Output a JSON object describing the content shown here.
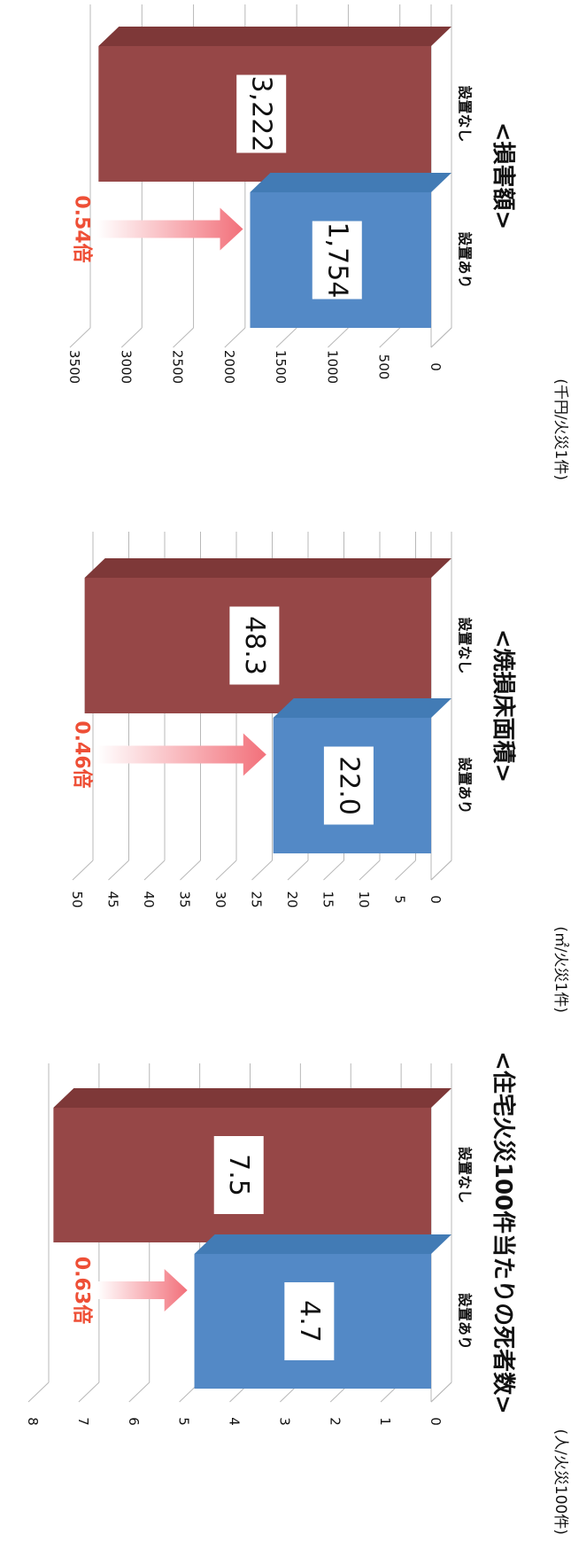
{
  "colors": {
    "without": "#964747",
    "without_side": "#6e2f2f",
    "without_top": "#7e3838",
    "with": "#5389c6",
    "with_side": "#3b6a9c",
    "with_top": "#427bb5",
    "ratio": "#ee4f36",
    "grid": "#b8b8b8"
  },
  "chart_data": [
    {
      "type": "bar",
      "title": "<住宅火災100件当たりの死者数>",
      "unit": "(人/火災100件)",
      "categories": [
        "設置なし",
        "設置あり"
      ],
      "values": [
        7.5,
        4.7
      ],
      "value_labels": [
        "7.5",
        "4.7"
      ],
      "ratio_label": "0.63倍",
      "ylim": [
        0,
        8
      ],
      "ticks": [
        0,
        1,
        2,
        3,
        4,
        5,
        6,
        7,
        8
      ],
      "tick_labels": [
        "0",
        "1",
        "2",
        "3",
        "4",
        "5",
        "6",
        "7",
        "8"
      ],
      "grid": true
    },
    {
      "type": "bar",
      "title": "<焼損床面積>",
      "unit": "(㎡/火災1件)",
      "categories": [
        "設置なし",
        "設置あり"
      ],
      "values": [
        48.3,
        22.0
      ],
      "value_labels": [
        "48.3",
        "22.0"
      ],
      "ratio_label": "0.46倍",
      "ylim": [
        0,
        50
      ],
      "ticks": [
        0,
        5,
        10,
        15,
        20,
        25,
        30,
        35,
        40,
        45,
        50
      ],
      "tick_labels": [
        "0",
        "5",
        "10",
        "15",
        "20",
        "25",
        "30",
        "35",
        "40",
        "45",
        "50"
      ],
      "grid": true
    },
    {
      "type": "bar",
      "title": "<損害額>",
      "unit": "(千円/火災1件)",
      "categories": [
        "設置なし",
        "設置あり"
      ],
      "values": [
        3222,
        1754
      ],
      "value_labels": [
        "3,222",
        "1,754"
      ],
      "ratio_label": "0.54倍",
      "ylim": [
        0,
        3500
      ],
      "ticks": [
        0,
        500,
        1000,
        1500,
        2000,
        2500,
        3000,
        3500
      ],
      "tick_labels": [
        "0",
        "500",
        "1000",
        "1500",
        "2000",
        "2500",
        "3000",
        "3500"
      ],
      "grid": true
    }
  ]
}
